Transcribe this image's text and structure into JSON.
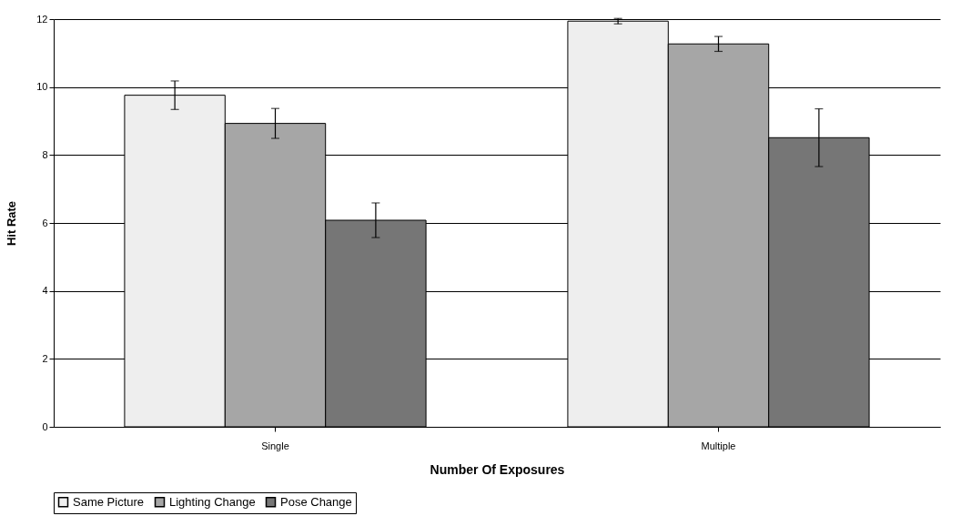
{
  "chart_data": {
    "type": "bar",
    "xlabel": "Number Of Exposures",
    "ylabel": "Hit Rate",
    "categories": [
      "Single",
      "Multiple"
    ],
    "series": [
      {
        "name": "Same Picture",
        "color": "#eeeeee",
        "values": [
          9.76,
          11.94
        ],
        "errors": [
          0.42,
          0.08
        ]
      },
      {
        "name": "Lighting Change",
        "color": "#a6a6a6",
        "values": [
          8.93,
          11.27
        ],
        "errors": [
          0.44,
          0.22
        ]
      },
      {
        "name": "Pose Change",
        "color": "#767676",
        "values": [
          6.08,
          8.51
        ],
        "errors": [
          0.51,
          0.85
        ]
      }
    ],
    "ylim": [
      0,
      12
    ],
    "yticks": [
      0,
      2,
      4,
      6,
      8,
      10,
      12
    ],
    "grid": "y",
    "legend": "bottom"
  }
}
